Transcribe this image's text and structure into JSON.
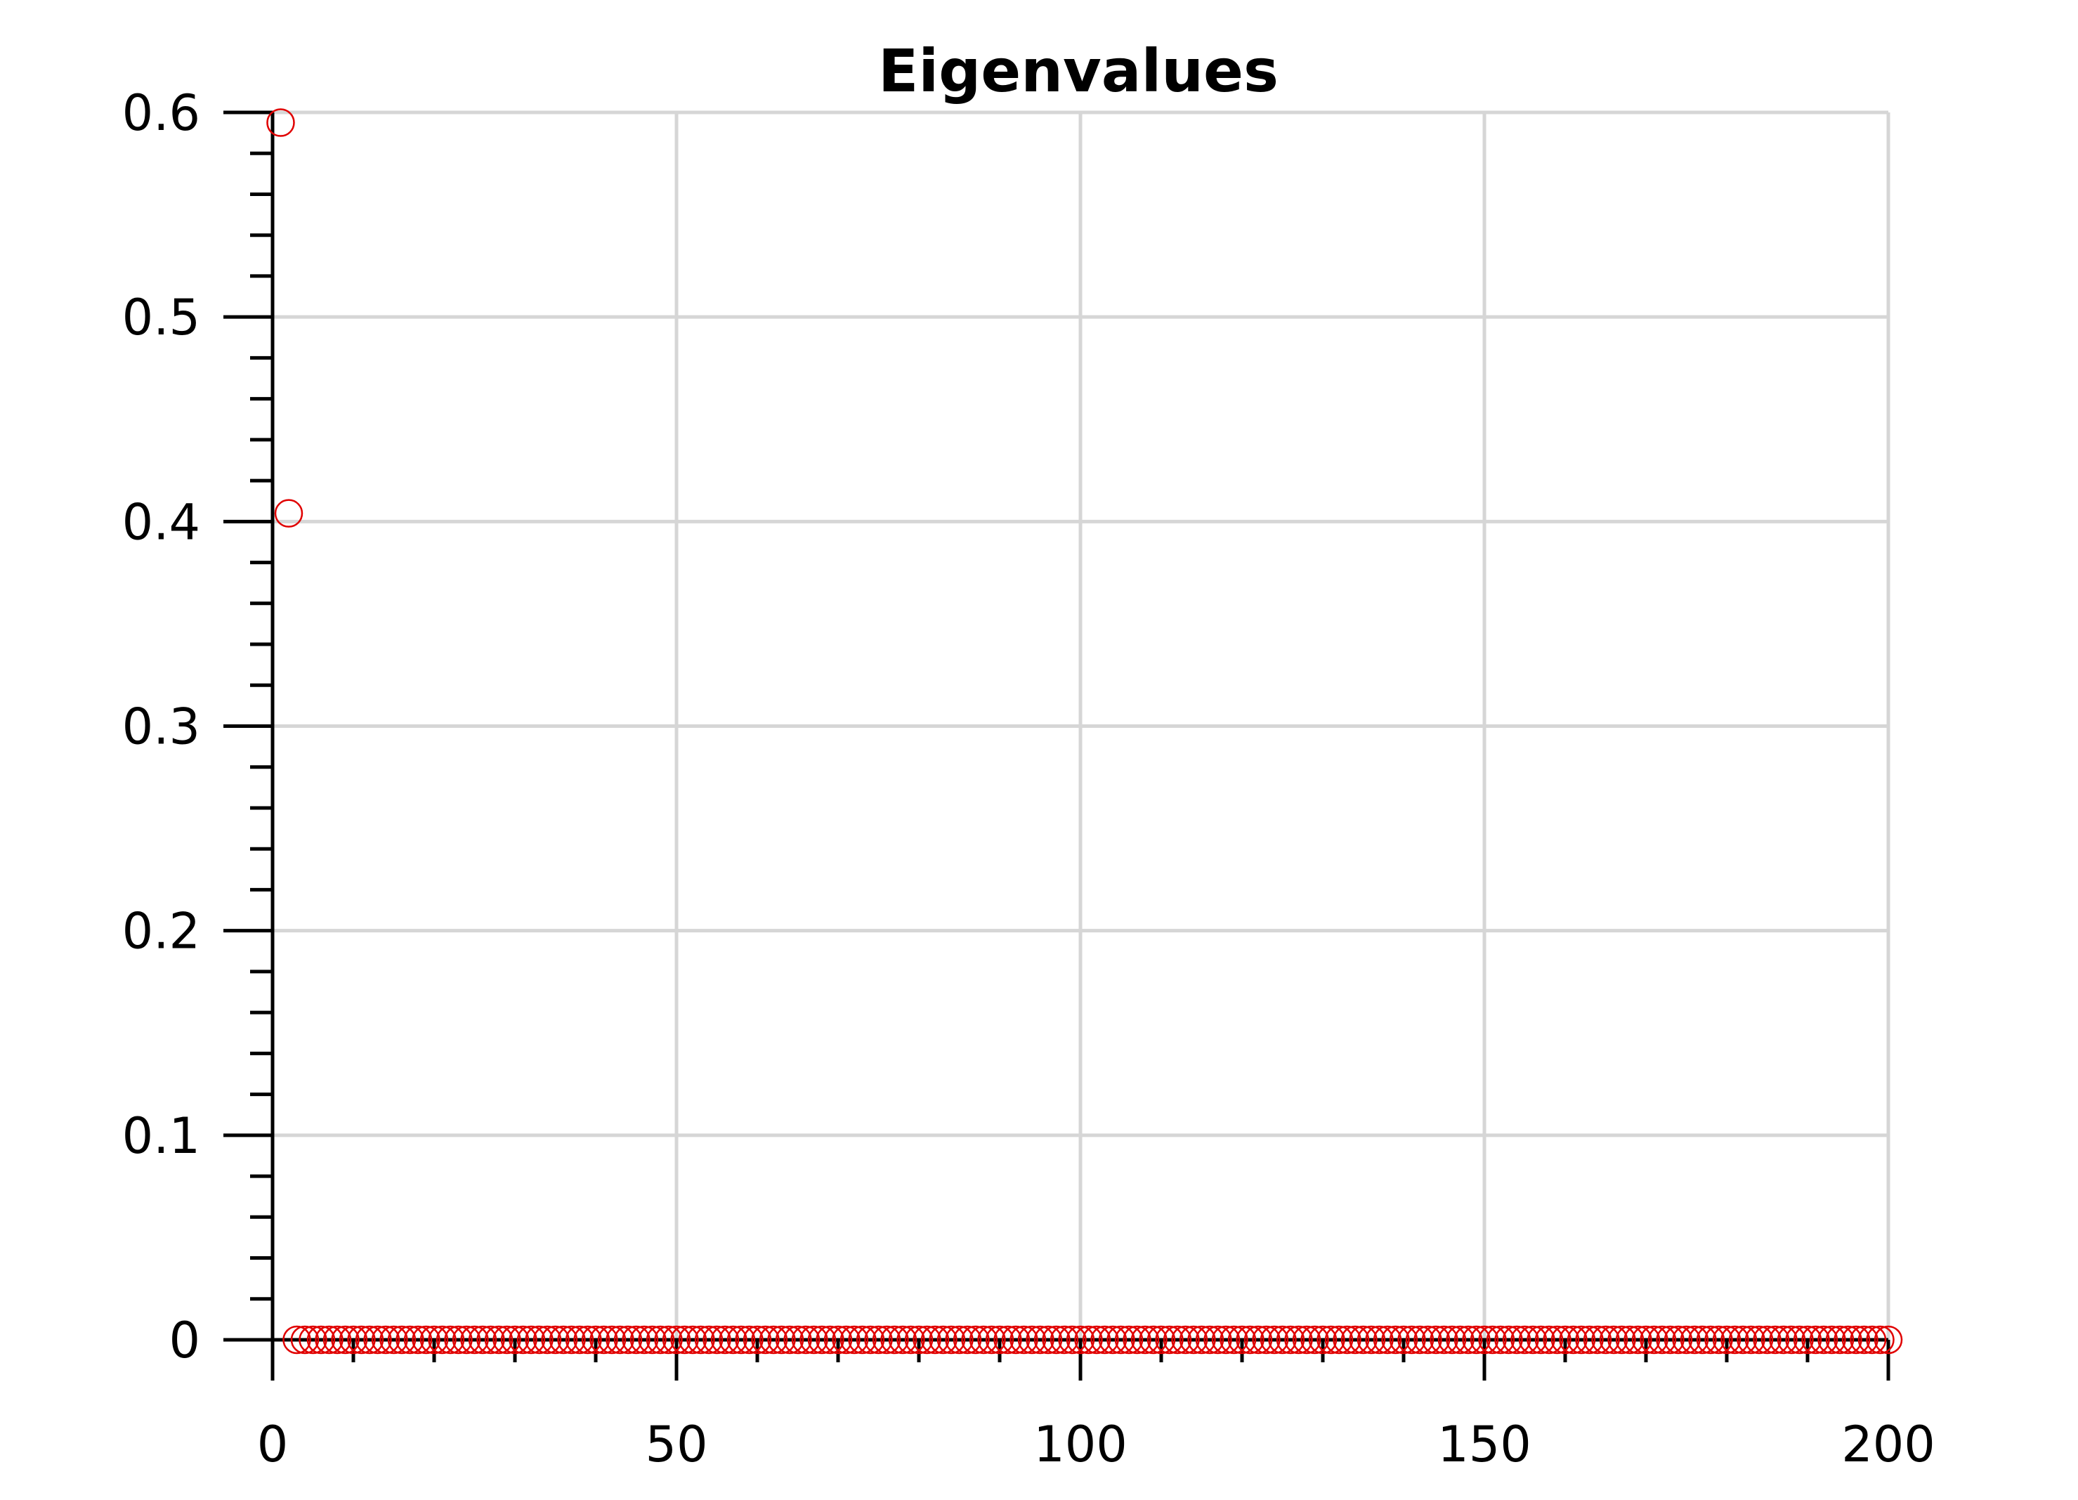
{
  "chart_data": {
    "type": "scatter",
    "title": "Eigenvalues",
    "xlabel": "",
    "ylabel": "",
    "xlim": [
      0,
      200
    ],
    "ylim": [
      0,
      0.6
    ],
    "grid": true,
    "x_major_ticks": [
      0,
      50,
      100,
      150,
      200
    ],
    "x_major_tick_labels": [
      "0",
      "50",
      "100",
      "150",
      "200"
    ],
    "x_minor_ticks": [
      10,
      20,
      30,
      40,
      60,
      70,
      80,
      90,
      110,
      120,
      130,
      140,
      160,
      170,
      180,
      190
    ],
    "y_major_ticks": [
      0,
      0.1,
      0.2,
      0.3,
      0.4,
      0.5,
      0.6
    ],
    "y_major_tick_labels": [
      "0",
      "0.1",
      "0.2",
      "0.3",
      "0.4",
      "0.5",
      "0.6"
    ],
    "y_minor_step": 0.02,
    "marker": "open-circle",
    "color": "#e00000",
    "series": [
      {
        "points": [
          [
            1,
            0.595
          ],
          [
            2,
            0.404
          ]
        ],
        "zero_points": {
          "x_start": 3,
          "x_end": 200,
          "y": 0
        }
      }
    ]
  }
}
